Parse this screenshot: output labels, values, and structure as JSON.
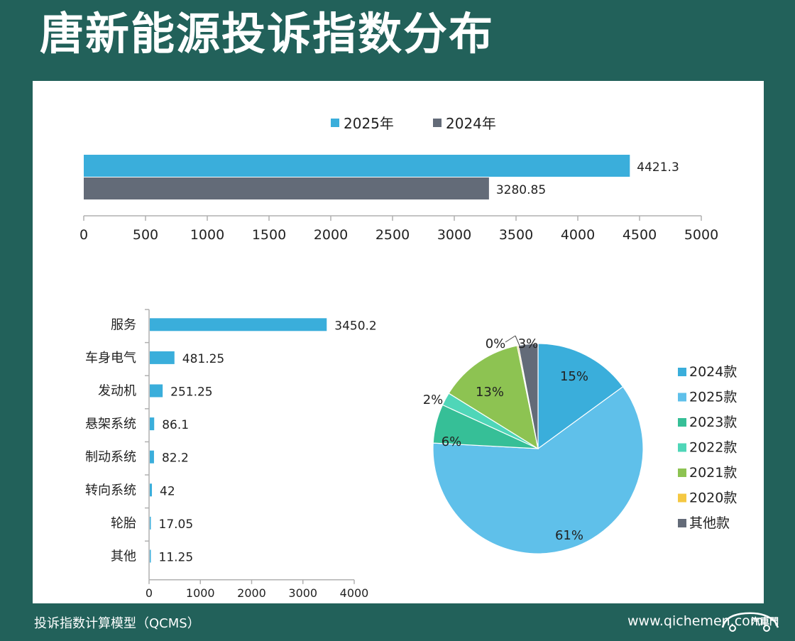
{
  "title": "唐新能源投诉指数分布",
  "footer": {
    "model": "投诉指数计算模型（QCMS）",
    "site": "www.qichemen.com",
    "logo_text": "汽車門"
  },
  "colors": {
    "y2025": "#3aaedb",
    "y2024": "#636b78",
    "bar": "#3aaedb",
    "axis": "#b0b0b0",
    "text": "#222222"
  },
  "chart_data": [
    {
      "type": "bar",
      "orientation": "horizontal",
      "series": [
        {
          "name": "2025年",
          "values": [
            4421.3
          ],
          "labels": [
            "4421.3"
          ]
        },
        {
          "name": "2024年",
          "values": [
            3280.85
          ],
          "labels": [
            "3280.85"
          ]
        }
      ],
      "xlim": [
        0,
        5000
      ],
      "xticks": [
        0,
        500,
        1000,
        1500,
        2000,
        2500,
        3000,
        3500,
        4000,
        4500,
        5000
      ],
      "legend": "top-center",
      "grid": false
    },
    {
      "type": "bar",
      "orientation": "horizontal",
      "categories": [
        "服务",
        "车身电气",
        "发动机",
        "悬架系统",
        "制动系统",
        "转向系统",
        "轮胎",
        "其他"
      ],
      "values": [
        3450.2,
        481.25,
        251.25,
        86.1,
        82.2,
        42,
        17.05,
        11.25
      ],
      "labels": [
        "3450.2",
        "481.25",
        "251.25",
        "86.1",
        "82.2",
        "42",
        "17.05",
        "11.25"
      ],
      "xlim": [
        0,
        4000
      ],
      "xticks": [
        0,
        1000,
        2000,
        3000,
        4000
      ],
      "grid": false
    },
    {
      "type": "pie",
      "slices": [
        {
          "name": "2024款",
          "value": 15,
          "label": "15%",
          "color": "#3aaedb"
        },
        {
          "name": "2025款",
          "value": 61,
          "label": "61%",
          "color": "#5fc0ea"
        },
        {
          "name": "2023款",
          "value": 6,
          "label": "6%",
          "color": "#36bf97"
        },
        {
          "name": "2022款",
          "value": 2,
          "label": "2%",
          "color": "#4fd6b8"
        },
        {
          "name": "2021款",
          "value": 13,
          "label": "13%",
          "color": "#8dc352"
        },
        {
          "name": "2020款",
          "value": 0.2,
          "label": "0%",
          "color": "#f5c842"
        },
        {
          "name": "其他款",
          "value": 3,
          "label": "3%",
          "color": "#636b78"
        }
      ],
      "legend": "right"
    }
  ]
}
